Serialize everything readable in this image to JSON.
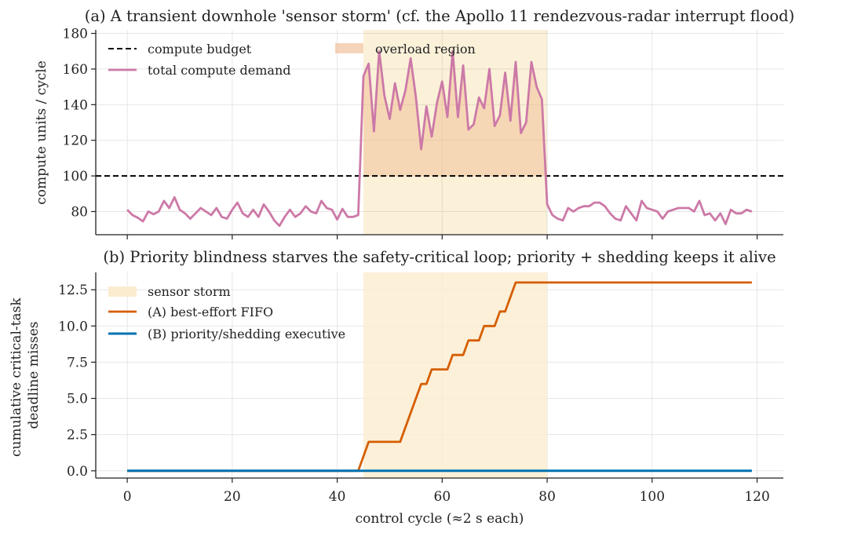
{
  "chart_data": [
    {
      "type": "line",
      "title": "(a) A transient downhole 'sensor storm' (cf. the Apollo 11 rendezvous-radar interrupt flood)",
      "xlabel": "",
      "ylabel": "compute units / cycle",
      "xlim": [
        -6,
        125
      ],
      "ylim": [
        67,
        182
      ],
      "xticks": [
        0,
        20,
        40,
        60,
        80,
        100,
        120
      ],
      "yticks": [
        80,
        100,
        120,
        140,
        160,
        180
      ],
      "grid": true,
      "legend_placement": "top-left (two columns)",
      "colors": {
        "budget": "#000000",
        "demand": "#cc79a7",
        "overload": "#e69f00",
        "overload_inner": "#f0b88a"
      },
      "budget": {
        "name": "compute budget",
        "value": 100,
        "style": "dashed"
      },
      "overload_region": {
        "name": "overload region",
        "x_start": 45,
        "x_end": 80
      },
      "series": [
        {
          "name": "total compute demand",
          "x_start": 0,
          "x_step": 1,
          "values": [
            81,
            78,
            76.5,
            74.5,
            80,
            78.5,
            80,
            86,
            82,
            88,
            81,
            79,
            76,
            79,
            82,
            80,
            78,
            82,
            77,
            76,
            81,
            85,
            79,
            77,
            81,
            77,
            84,
            80,
            75,
            72,
            77,
            81,
            77,
            79,
            83,
            80,
            79,
            86,
            82,
            81,
            75.5,
            81.5,
            77,
            77,
            78,
            156,
            163,
            125,
            170,
            145,
            132,
            152,
            137,
            148,
            166,
            144,
            115,
            139,
            122,
            141,
            153,
            133,
            170,
            133,
            162,
            126,
            129,
            144,
            138,
            160,
            128,
            134,
            158,
            131,
            164,
            124,
            130,
            164,
            150,
            143,
            84,
            78,
            76,
            75,
            82,
            80,
            82,
            83,
            83,
            85,
            85,
            83,
            79,
            76,
            75,
            83,
            79,
            75,
            86,
            82,
            81,
            80,
            76,
            80,
            81,
            82,
            82,
            82,
            80,
            86,
            78,
            79,
            75,
            79,
            73,
            81,
            79,
            79,
            81,
            80
          ]
        }
      ]
    },
    {
      "type": "line",
      "title": "(b) Priority blindness starves the safety-critical loop; priority + shedding keeps it alive",
      "xlabel": "control cycle (≈2 s each)",
      "ylabel": [
        "cumulative critical-task",
        "deadline misses"
      ],
      "xlim": [
        -6,
        125
      ],
      "ylim": [
        -0.5,
        13.7
      ],
      "xticks": [
        0,
        20,
        40,
        60,
        80,
        100,
        120
      ],
      "yticks": [
        "0.0",
        "2.5",
        "5.0",
        "7.5",
        "10.0",
        "12.5"
      ],
      "grid": true,
      "legend_placement": "top-left",
      "colors": {
        "storm": "#fbecd0",
        "fifo": "#d55e00",
        "priority": "#0072b2"
      },
      "storm_region": {
        "name": "sensor storm",
        "x_start": 45,
        "x_end": 80
      },
      "series": [
        {
          "name": "(A) best-effort FIFO",
          "points": [
            [
              0,
              0
            ],
            [
              44,
              0
            ],
            [
              46,
              2
            ],
            [
              52,
              2
            ],
            [
              56,
              6
            ],
            [
              57,
              6
            ],
            [
              58,
              7
            ],
            [
              61,
              7
            ],
            [
              62,
              8
            ],
            [
              64,
              8
            ],
            [
              65,
              9
            ],
            [
              67,
              9
            ],
            [
              68,
              10
            ],
            [
              70,
              10
            ],
            [
              71,
              11
            ],
            [
              72,
              11
            ],
            [
              74,
              13
            ],
            [
              119,
              13
            ]
          ]
        },
        {
          "name": "(B) priority/shedding executive",
          "points": [
            [
              0,
              0
            ],
            [
              119,
              0
            ]
          ]
        }
      ]
    }
  ]
}
